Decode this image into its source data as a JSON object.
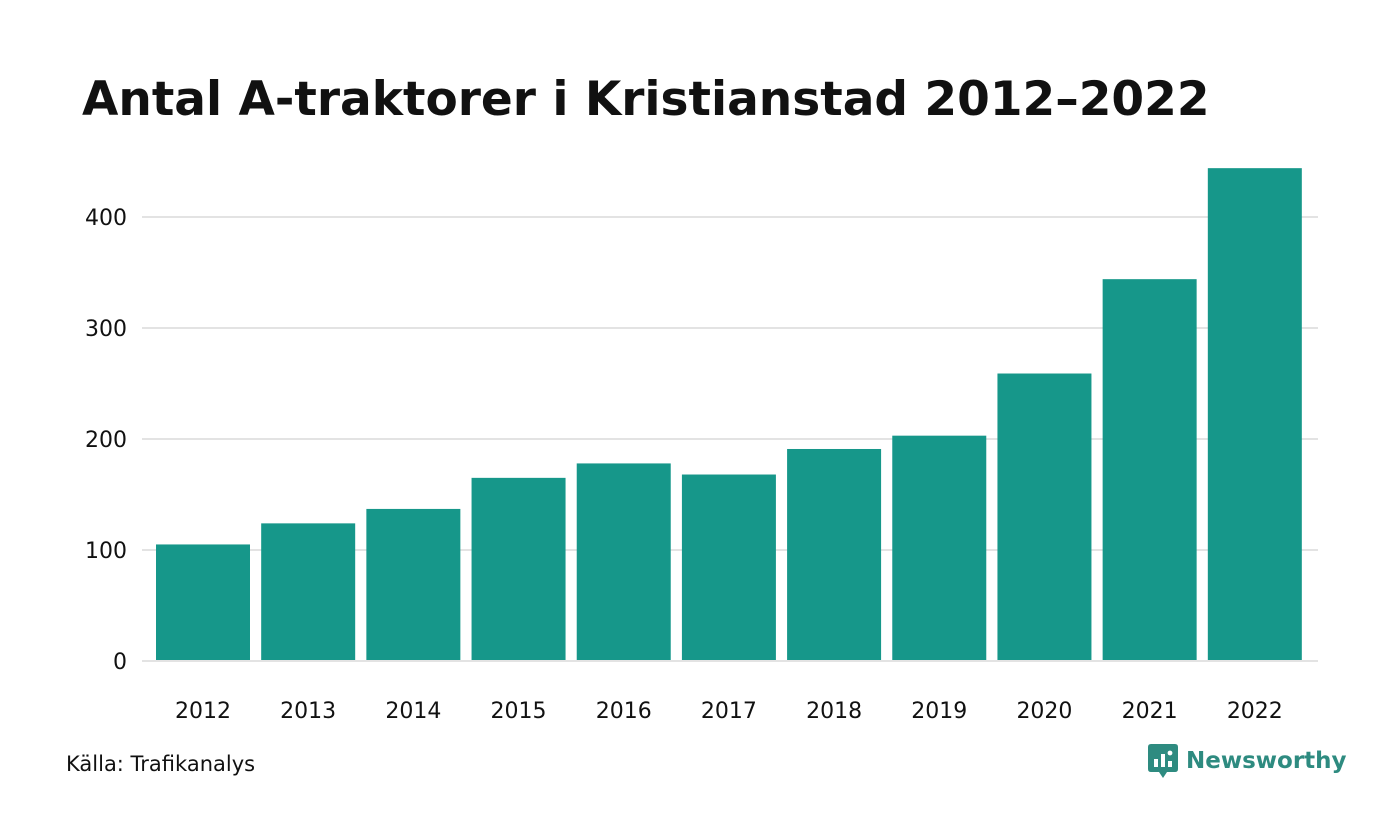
{
  "title": "Antal A-traktorer i Kristianstad 2012–2022",
  "source": "Källa: Trafikanalys",
  "brand": {
    "name": "Newsworthy",
    "icon": "newsworthy-logo-icon",
    "color": "#2e8b80"
  },
  "colors": {
    "bar": "#16978a",
    "grid": "#e3e3e3",
    "text": "#111111"
  },
  "chart_data": {
    "type": "bar",
    "categories": [
      "2012",
      "2013",
      "2014",
      "2015",
      "2016",
      "2017",
      "2018",
      "2019",
      "2020",
      "2021",
      "2022"
    ],
    "values": [
      105,
      124,
      137,
      165,
      178,
      168,
      191,
      203,
      259,
      344,
      444
    ],
    "title": "Antal A-traktorer i Kristianstad 2012–2022",
    "xlabel": "",
    "ylabel": "",
    "ylim": [
      0,
      444
    ],
    "yticks": [
      0,
      100,
      200,
      300,
      400
    ],
    "grid": true,
    "legend": "none"
  }
}
